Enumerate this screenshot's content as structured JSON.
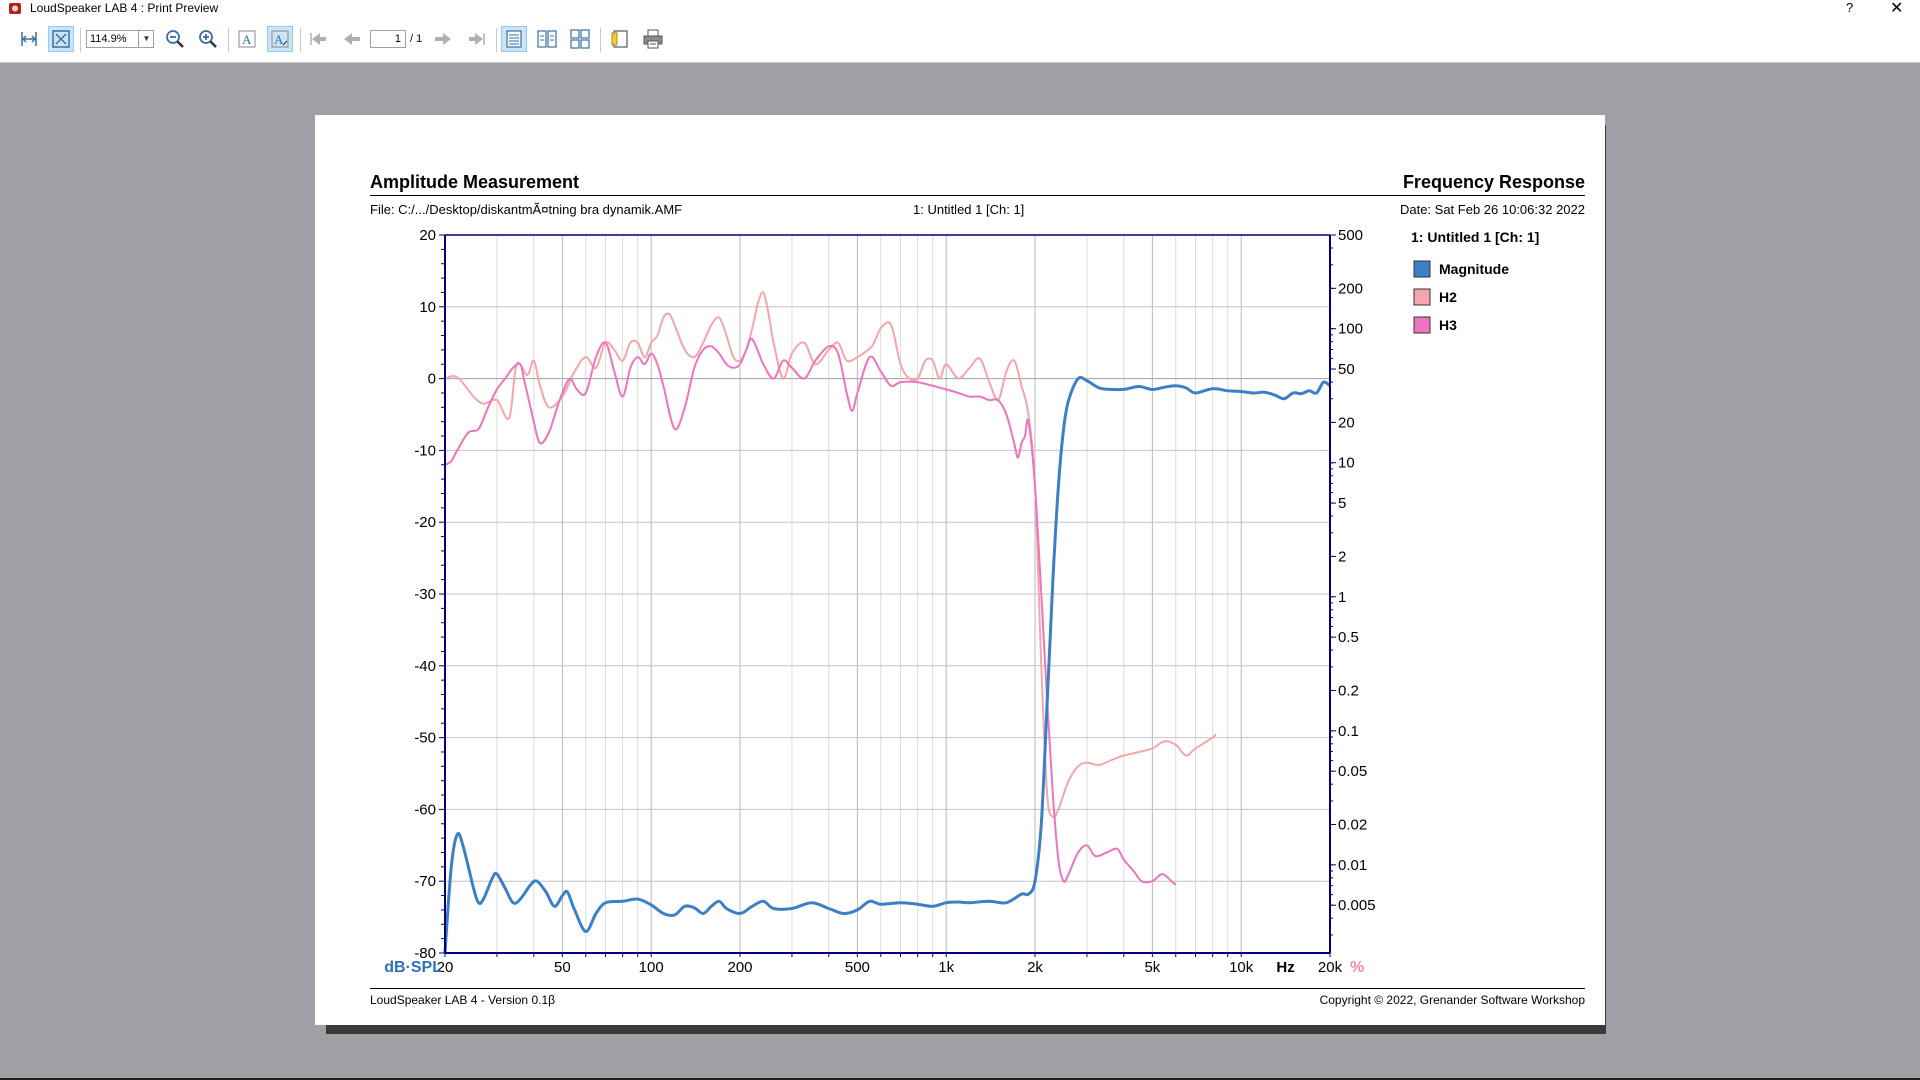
{
  "window": {
    "title": "LoudSpeaker LAB 4 : Print Preview",
    "help_glyph": "?",
    "close_glyph": "✕"
  },
  "toolbar": {
    "zoom_value": "114.9%",
    "page_current": "1",
    "page_total": "/ 1",
    "icons": [
      "fit-width-icon",
      "fit-page-icon",
      "zoom-out-icon",
      "zoom-in-icon",
      "font-icon",
      "font-scale-icon",
      "first-page-icon",
      "prev-page-icon",
      "next-page-icon",
      "last-page-icon",
      "single-page-icon",
      "two-page-icon",
      "four-page-icon",
      "page-setup-icon",
      "print-icon"
    ]
  },
  "report": {
    "title_left": "Amplitude Measurement",
    "title_right": "Frequency Response",
    "file_line": "File: C:/.../Desktop/diskantmÃ¤tning bra dynamik.AMF",
    "channel_line": "1: Untitled 1 [Ch: 1]",
    "date_line": "Date: Sat Feb 26 10:06:32 2022",
    "footer_left": "LoudSpeaker LAB 4 - Version 0.1β",
    "footer_right": "Copyright © 2022, Grenander Software Workshop"
  },
  "chart_data": {
    "type": "line",
    "title": "",
    "x_scale": "log",
    "xlim": [
      20,
      20000
    ],
    "ylim": [
      -80,
      20
    ],
    "y_unit_label": "dB·SPL",
    "x_unit_label": "Hz",
    "y2_unit_label": "%",
    "y2_scale": "log",
    "y2lim": [
      0.0022,
      500
    ],
    "grid": true,
    "colors": {
      "magnitude": "#3d7fc7",
      "h2": "#f4a6aa",
      "h3": "#ee74be",
      "unit_left": "#2f6fbf",
      "unit_right": "#f08aa6",
      "axis": "#00007a"
    },
    "y_ticks": [
      20,
      10,
      0,
      -10,
      -20,
      -30,
      -40,
      -50,
      -60,
      -70,
      -80
    ],
    "y2_ticks": [
      "500",
      "200",
      "100",
      "50",
      "20",
      "10",
      "5",
      "2",
      "1",
      "0.5",
      "0.2",
      "0.1",
      "0.05",
      "0.02",
      "0.01",
      "0.005"
    ],
    "x_ticks": [
      {
        "v": 20,
        "label": "20"
      },
      {
        "v": 50,
        "label": "50"
      },
      {
        "v": 100,
        "label": "100"
      },
      {
        "v": 200,
        "label": "200"
      },
      {
        "v": 500,
        "label": "500"
      },
      {
        "v": 1000,
        "label": "1k"
      },
      {
        "v": 2000,
        "label": "2k"
      },
      {
        "v": 5000,
        "label": "5k"
      },
      {
        "v": 10000,
        "label": "10k"
      },
      {
        "v": 20000,
        "label": "20k"
      }
    ],
    "legend_title": "1: Untitled 1 [Ch: 1]",
    "legend_position": "right",
    "series": [
      {
        "name": "Magnitude",
        "axis": "left",
        "points": [
          [
            20,
            -80
          ],
          [
            21,
            -68
          ],
          [
            22,
            -63.5
          ],
          [
            23,
            -65
          ],
          [
            25,
            -71
          ],
          [
            26,
            -73
          ],
          [
            27,
            -72.5
          ],
          [
            29,
            -69.5
          ],
          [
            30,
            -69
          ],
          [
            32,
            -71
          ],
          [
            34,
            -73
          ],
          [
            36,
            -72.5
          ],
          [
            39,
            -70.5
          ],
          [
            41,
            -70
          ],
          [
            44,
            -71.5
          ],
          [
            47,
            -73.5
          ],
          [
            50,
            -72
          ],
          [
            52,
            -71.5
          ],
          [
            55,
            -74
          ],
          [
            60,
            -77
          ],
          [
            65,
            -74.5
          ],
          [
            70,
            -73
          ],
          [
            80,
            -72.8
          ],
          [
            90,
            -72.5
          ],
          [
            100,
            -73.3
          ],
          [
            110,
            -74.5
          ],
          [
            120,
            -74.7
          ],
          [
            130,
            -73.5
          ],
          [
            140,
            -73.7
          ],
          [
            150,
            -74.5
          ],
          [
            160,
            -73.5
          ],
          [
            170,
            -72.8
          ],
          [
            180,
            -73.8
          ],
          [
            200,
            -74.5
          ],
          [
            220,
            -73.5
          ],
          [
            240,
            -72.8
          ],
          [
            260,
            -73.8
          ],
          [
            300,
            -73.8
          ],
          [
            350,
            -73
          ],
          [
            400,
            -73.8
          ],
          [
            450,
            -74.5
          ],
          [
            500,
            -74
          ],
          [
            550,
            -72.8
          ],
          [
            600,
            -73.2
          ],
          [
            700,
            -73
          ],
          [
            800,
            -73.2
          ],
          [
            900,
            -73.5
          ],
          [
            1000,
            -73
          ],
          [
            1100,
            -72.9
          ],
          [
            1200,
            -73
          ],
          [
            1400,
            -72.8
          ],
          [
            1600,
            -73
          ],
          [
            1800,
            -71.8
          ],
          [
            1900,
            -71.8
          ],
          [
            2000,
            -70
          ],
          [
            2100,
            -62
          ],
          [
            2200,
            -45
          ],
          [
            2300,
            -28
          ],
          [
            2400,
            -15
          ],
          [
            2500,
            -7
          ],
          [
            2600,
            -3
          ],
          [
            2800,
            0
          ],
          [
            3000,
            -0.3
          ],
          [
            3300,
            -1.3
          ],
          [
            3600,
            -1.5
          ],
          [
            4000,
            -1.5
          ],
          [
            4500,
            -1.1
          ],
          [
            5000,
            -1.5
          ],
          [
            5500,
            -1.2
          ],
          [
            6000,
            -1
          ],
          [
            6500,
            -1.3
          ],
          [
            7000,
            -2
          ],
          [
            8000,
            -1.4
          ],
          [
            9000,
            -1.7
          ],
          [
            10000,
            -1.8
          ],
          [
            11000,
            -2
          ],
          [
            12000,
            -1.9
          ],
          [
            13000,
            -2.3
          ],
          [
            14000,
            -2.8
          ],
          [
            15000,
            -2
          ],
          [
            16000,
            -2.1
          ],
          [
            17000,
            -1.7
          ],
          [
            18000,
            -2
          ],
          [
            19000,
            -0.5
          ],
          [
            20000,
            -1
          ]
        ]
      },
      {
        "name": "H2",
        "axis": "right",
        "points": [
          [
            20,
            0.0
          ],
          [
            22,
            0.2
          ],
          [
            25,
            -2.5
          ],
          [
            27,
            -3.5
          ],
          [
            30,
            -3
          ],
          [
            33,
            -5.5
          ],
          [
            35,
            2
          ],
          [
            38,
            0.5
          ],
          [
            40,
            2.5
          ],
          [
            42,
            -1
          ],
          [
            45,
            -4
          ],
          [
            50,
            -2.5
          ],
          [
            55,
            1
          ],
          [
            60,
            3
          ],
          [
            65,
            1.5
          ],
          [
            70,
            5
          ],
          [
            75,
            4
          ],
          [
            80,
            2.5
          ],
          [
            85,
            5
          ],
          [
            90,
            5
          ],
          [
            95,
            3
          ],
          [
            100,
            5
          ],
          [
            105,
            6
          ],
          [
            110,
            8.5
          ],
          [
            115,
            9
          ],
          [
            120,
            7.5
          ],
          [
            130,
            4
          ],
          [
            140,
            3
          ],
          [
            150,
            5
          ],
          [
            160,
            7.5
          ],
          [
            170,
            8.5
          ],
          [
            180,
            6
          ],
          [
            190,
            3
          ],
          [
            200,
            2.5
          ],
          [
            210,
            4
          ],
          [
            220,
            7
          ],
          [
            230,
            10.5
          ],
          [
            240,
            12
          ],
          [
            250,
            9
          ],
          [
            260,
            5
          ],
          [
            280,
            0
          ],
          [
            300,
            3.5
          ],
          [
            330,
            5
          ],
          [
            360,
            2
          ],
          [
            400,
            4
          ],
          [
            430,
            5
          ],
          [
            460,
            2.5
          ],
          [
            500,
            3
          ],
          [
            560,
            4.5
          ],
          [
            600,
            7
          ],
          [
            650,
            7.5
          ],
          [
            700,
            2
          ],
          [
            750,
            0
          ],
          [
            800,
            0
          ],
          [
            850,
            2.5
          ],
          [
            900,
            2.5
          ],
          [
            950,
            0
          ],
          [
            1000,
            2
          ],
          [
            1100,
            0
          ],
          [
            1200,
            1.5
          ],
          [
            1300,
            2.8
          ],
          [
            1400,
            -0.5
          ],
          [
            1500,
            -3
          ],
          [
            1600,
            1
          ],
          [
            1700,
            2.5
          ],
          [
            1800,
            -1
          ],
          [
            1900,
            -5
          ],
          [
            2000,
            -15
          ],
          [
            2100,
            -40
          ],
          [
            2200,
            -58
          ],
          [
            2300,
            -61
          ],
          [
            2400,
            -60
          ],
          [
            2600,
            -56
          ],
          [
            2800,
            -54
          ],
          [
            3000,
            -53.5
          ],
          [
            3300,
            -53.8
          ],
          [
            3700,
            -53
          ],
          [
            4000,
            -52.5
          ],
          [
            4500,
            -52
          ],
          [
            5000,
            -51.5
          ],
          [
            5500,
            -50.5
          ],
          [
            6000,
            -51
          ],
          [
            6500,
            -52.5
          ],
          [
            7000,
            -51.5
          ],
          [
            8000,
            -50
          ],
          [
            8200,
            -49.5
          ]
        ]
      },
      {
        "name": "H3",
        "axis": "right",
        "points": [
          [
            20,
            -12
          ],
          [
            21,
            -11.5
          ],
          [
            22,
            -10
          ],
          [
            24,
            -7.5
          ],
          [
            26,
            -7
          ],
          [
            28,
            -4
          ],
          [
            30,
            -1.5
          ],
          [
            32,
            0
          ],
          [
            34,
            1.5
          ],
          [
            36,
            2
          ],
          [
            37,
            0
          ],
          [
            38,
            -2
          ],
          [
            40,
            -6
          ],
          [
            42,
            -9
          ],
          [
            45,
            -7.5
          ],
          [
            48,
            -4
          ],
          [
            50,
            -2
          ],
          [
            53,
            0
          ],
          [
            56,
            -1.5
          ],
          [
            60,
            -2
          ],
          [
            65,
            3
          ],
          [
            70,
            5
          ],
          [
            75,
            1
          ],
          [
            80,
            -2.5
          ],
          [
            85,
            1.5
          ],
          [
            90,
            3
          ],
          [
            95,
            2
          ],
          [
            100,
            3.5
          ],
          [
            105,
            2
          ],
          [
            110,
            -1
          ],
          [
            120,
            -7
          ],
          [
            130,
            -4
          ],
          [
            140,
            1.5
          ],
          [
            150,
            4
          ],
          [
            160,
            4.5
          ],
          [
            170,
            3.5
          ],
          [
            180,
            2
          ],
          [
            190,
            1.5
          ],
          [
            200,
            2
          ],
          [
            210,
            4
          ],
          [
            220,
            5.5
          ],
          [
            240,
            2
          ],
          [
            260,
            0
          ],
          [
            280,
            2.5
          ],
          [
            300,
            1.5
          ],
          [
            330,
            0
          ],
          [
            360,
            2.5
          ],
          [
            400,
            4.5
          ],
          [
            430,
            3.5
          ],
          [
            460,
            -2
          ],
          [
            480,
            -4.5
          ],
          [
            500,
            -2
          ],
          [
            550,
            3
          ],
          [
            600,
            1
          ],
          [
            650,
            -1
          ],
          [
            700,
            -0.5
          ],
          [
            800,
            -0.5
          ],
          [
            900,
            -1
          ],
          [
            1000,
            -1.5
          ],
          [
            1100,
            -2
          ],
          [
            1200,
            -2.5
          ],
          [
            1300,
            -2.5
          ],
          [
            1400,
            -3
          ],
          [
            1500,
            -3
          ],
          [
            1600,
            -5
          ],
          [
            1700,
            -9
          ],
          [
            1750,
            -11
          ],
          [
            1800,
            -9
          ],
          [
            1850,
            -8
          ],
          [
            1900,
            -6
          ],
          [
            2000,
            -15
          ],
          [
            2100,
            -30
          ],
          [
            2200,
            -45
          ],
          [
            2300,
            -58
          ],
          [
            2400,
            -67
          ],
          [
            2500,
            -70
          ],
          [
            2600,
            -69
          ],
          [
            2800,
            -66
          ],
          [
            3000,
            -65
          ],
          [
            3200,
            -66.5
          ],
          [
            3500,
            -66
          ],
          [
            3800,
            -65.5
          ],
          [
            4000,
            -67
          ],
          [
            4300,
            -68.5
          ],
          [
            4600,
            -70
          ],
          [
            5000,
            -70
          ],
          [
            5400,
            -69
          ],
          [
            5800,
            -70
          ],
          [
            6000,
            -70.5
          ]
        ]
      }
    ]
  }
}
